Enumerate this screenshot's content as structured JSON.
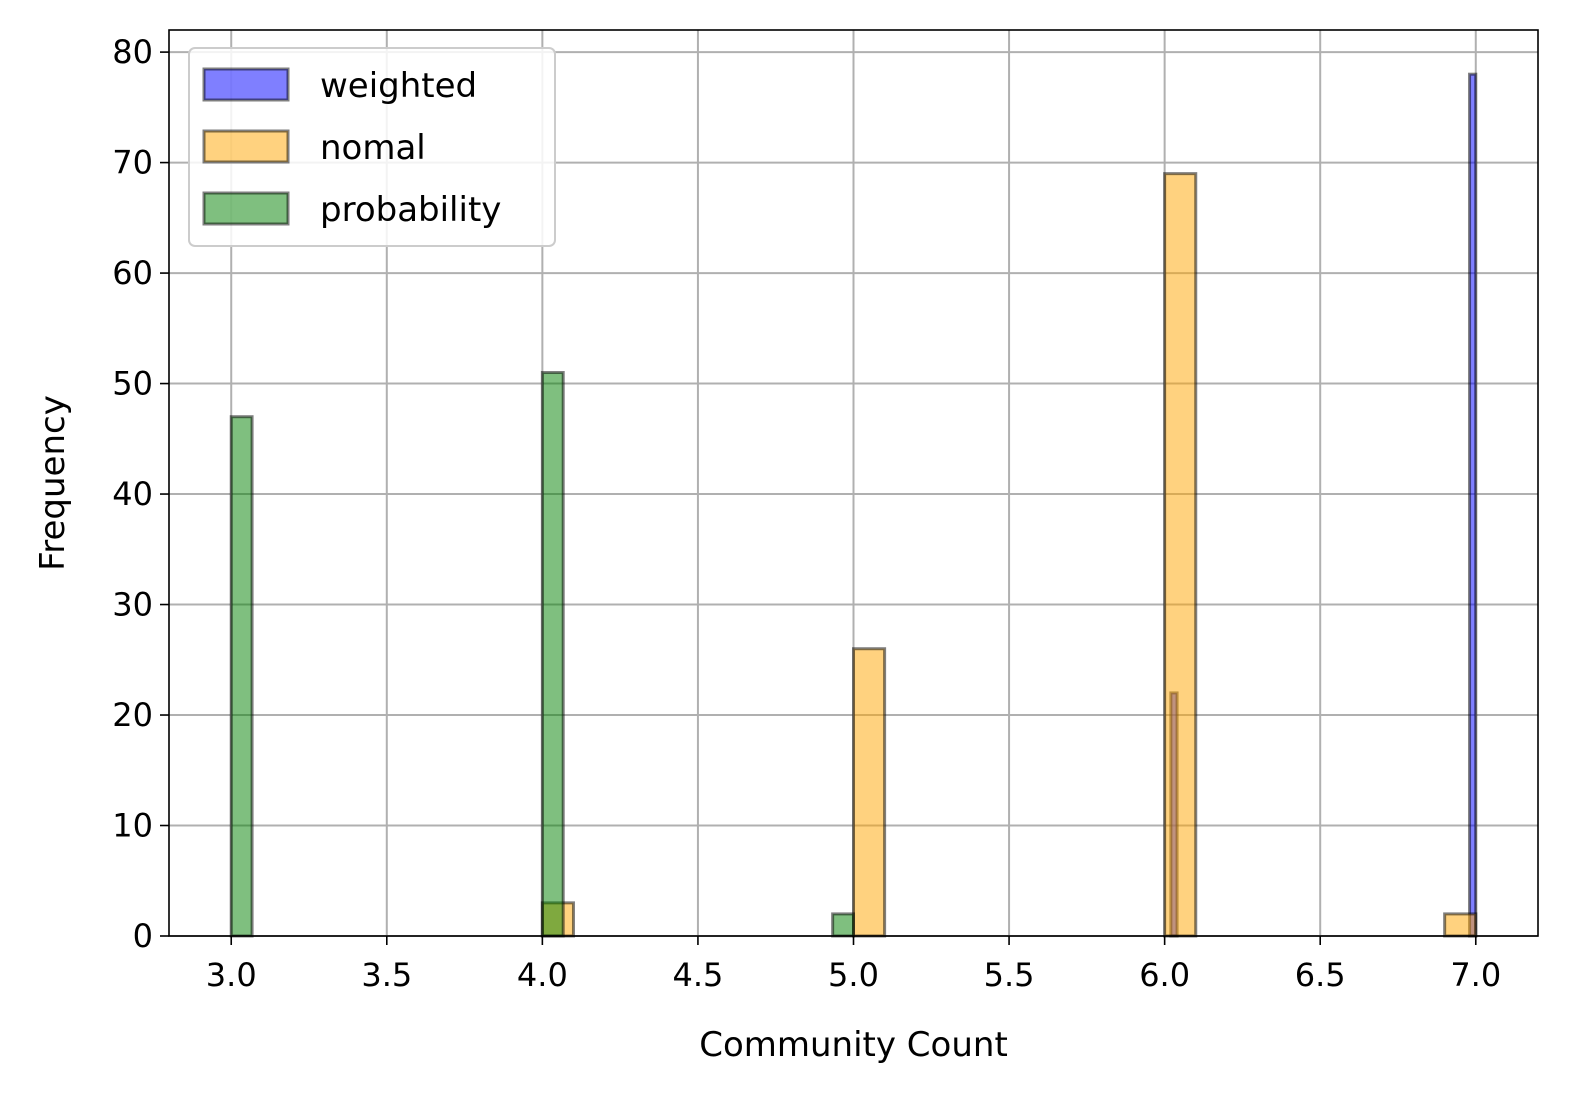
{
  "chart_data": {
    "type": "bar",
    "title": "",
    "xlabel": "Community Count",
    "ylabel": "Frequency",
    "xlim": [
      2.8,
      7.2
    ],
    "ylim": [
      0,
      82
    ],
    "xticks": [
      "3.0",
      "3.5",
      "4.0",
      "4.5",
      "5.0",
      "5.5",
      "6.0",
      "6.5",
      "7.0"
    ],
    "yticks": [
      "0",
      "10",
      "20",
      "30",
      "40",
      "50",
      "60",
      "70",
      "80"
    ],
    "grid": true,
    "legend_position": "top-left",
    "series": [
      {
        "name": "weighted",
        "color": "#0000ff",
        "bins": [
          {
            "x0": 6.02,
            "x1": 6.04,
            "value": 22
          },
          {
            "x0": 6.98,
            "x1": 7.0,
            "value": 78
          }
        ]
      },
      {
        "name": "nomal",
        "color": "#ffa500",
        "bins": [
          {
            "x0": 4.0,
            "x1": 4.1,
            "value": 3
          },
          {
            "x0": 4.1,
            "x1": 5.0,
            "value": 0
          },
          {
            "x0": 5.0,
            "x1": 5.1,
            "value": 26
          },
          {
            "x0": 6.0,
            "x1": 6.1,
            "value": 69
          },
          {
            "x0": 6.9,
            "x1": 7.0,
            "value": 2
          }
        ]
      },
      {
        "name": "probability",
        "color": "#008000",
        "bins": [
          {
            "x0": 3.0,
            "x1": 3.067,
            "value": 47
          },
          {
            "x0": 4.0,
            "x1": 4.067,
            "value": 51
          },
          {
            "x0": 4.933,
            "x1": 5.0,
            "value": 2
          }
        ]
      }
    ]
  }
}
